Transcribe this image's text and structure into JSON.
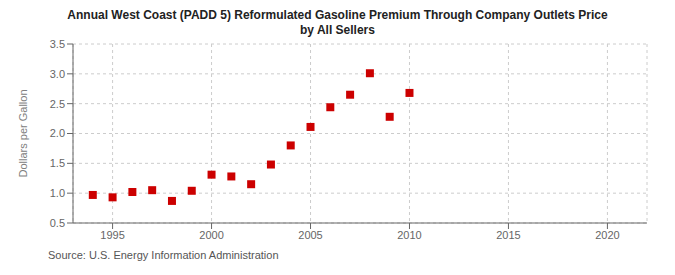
{
  "chart_data": {
    "type": "scatter",
    "title": "Annual West Coast (PADD 5) Reformulated Gasoline Premium Through Company Outlets Price\nby All Sellers",
    "ylabel": "Dollars per Gallon",
    "annotation": "Source: U.S. Energy Information Administration",
    "x": [
      1994,
      1995,
      1996,
      1997,
      1998,
      1999,
      2000,
      2001,
      2002,
      2003,
      2004,
      2005,
      2006,
      2007,
      2008,
      2009,
      2010
    ],
    "values": [
      0.97,
      0.93,
      1.02,
      1.05,
      0.87,
      1.04,
      1.31,
      1.28,
      1.15,
      1.48,
      1.8,
      2.11,
      2.44,
      2.65,
      3.01,
      2.28,
      2.68
    ],
    "color": "#cc0000",
    "marker": "square",
    "xlim": [
      1993,
      2022
    ],
    "ylim": [
      0.5,
      3.5
    ],
    "xticks": [
      1995,
      2000,
      2005,
      2010,
      2015,
      2020
    ],
    "yticks": [
      0.5,
      {
        "value": 1,
        "label": "1.0"
      },
      1.5,
      {
        "value": 2,
        "label": "2.0"
      },
      2.5,
      {
        "value": 3,
        "label": "3.0"
      },
      3.5
    ],
    "grid": true
  }
}
